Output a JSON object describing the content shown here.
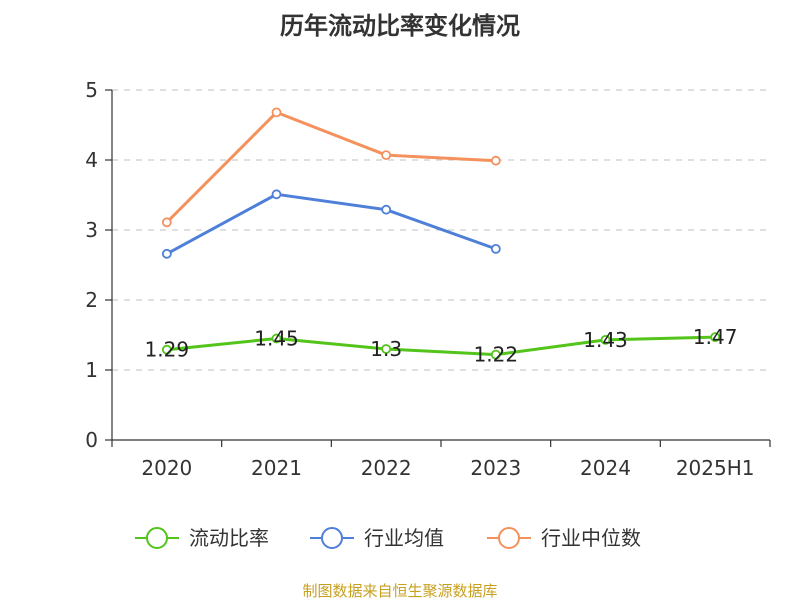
{
  "source_note": "制图数据来自恒生聚源数据库",
  "chart_data": {
    "type": "line",
    "title": "历年流动比率变化情况",
    "categories": [
      "2020",
      "2021",
      "2022",
      "2023",
      "2024",
      "2025H1"
    ],
    "y_ticks": [
      "0",
      "1",
      "2",
      "3",
      "4",
      "5"
    ],
    "ylim": [
      0,
      5
    ],
    "grid": true,
    "legend_position": "bottom",
    "series": [
      {
        "name": "流动比率",
        "color": "#52c41a",
        "values": [
          1.29,
          1.45,
          1.3,
          1.22,
          1.43,
          1.47
        ],
        "labels": [
          "1.29",
          "1.45",
          "1.3",
          "1.22",
          "1.43",
          "1.47"
        ]
      },
      {
        "name": "行业均值",
        "color": "#4e7fd9",
        "values": [
          2.66,
          3.51,
          3.29,
          2.73,
          null,
          null
        ]
      },
      {
        "name": "行业中位数",
        "color": "#f4915c",
        "values": [
          3.11,
          4.68,
          4.07,
          3.99,
          null,
          null
        ]
      }
    ]
  }
}
